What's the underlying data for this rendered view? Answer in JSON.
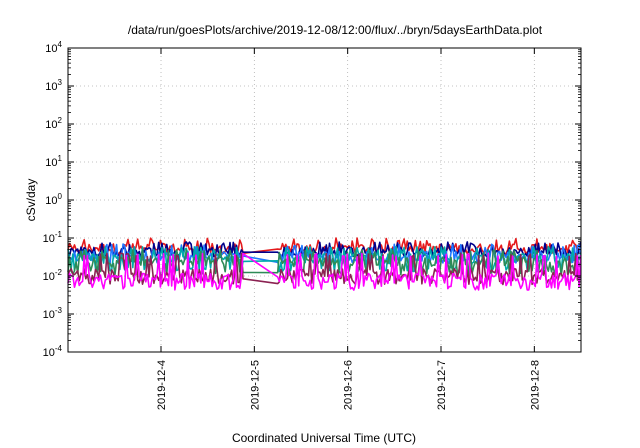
{
  "chart_data": {
    "type": "line",
    "title": "/data/run/goesPlots/archive/2019-12-08/12:00/flux/../bryn/5daysEarthData.plot",
    "xlabel": "Coordinated Universal Time (UTC)",
    "ylabel": "cSv/day",
    "yscale": "log",
    "ylim": [
      0.0001,
      10000
    ],
    "xlim": [
      "2019-12-03 00:05",
      "2019-12-08 12:00"
    ],
    "grid": true,
    "x_ticks": [
      "2019-12-4",
      "2019-12-5",
      "2019-12-6",
      "2019-12-7",
      "2019-12-8"
    ],
    "y_ticks": [
      {
        "base": "10",
        "exp": "-4",
        "value": 0.0001
      },
      {
        "base": "10",
        "exp": "-3",
        "value": 0.001
      },
      {
        "base": "10",
        "exp": "-2",
        "value": 0.01
      },
      {
        "base": "10",
        "exp": "-1",
        "value": 0.1
      },
      {
        "base": "10",
        "exp": "0",
        "value": 1
      },
      {
        "base": "10",
        "exp": "1",
        "value": 10
      },
      {
        "base": "10",
        "exp": "2",
        "value": 100
      },
      {
        "base": "10",
        "exp": "3",
        "value": 1000
      },
      {
        "base": "10",
        "exp": "4",
        "value": 10000
      }
    ],
    "gap": [
      "2019-12-04 21:20",
      "2019-12-05 06:00"
    ],
    "series": [
      {
        "color": "#e41a1c",
        "typical": 0.055,
        "low": 0.045,
        "high": 0.1
      },
      {
        "color": "#00008b",
        "typical": 0.045,
        "low": 0.035,
        "high": 0.08
      },
      {
        "color": "#1f77ff",
        "typical": 0.035,
        "low": 0.025,
        "high": 0.07
      },
      {
        "color": "#00aaaa",
        "typical": 0.03,
        "low": 0.015,
        "high": 0.06
      },
      {
        "color": "#2e8b57",
        "typical": 0.025,
        "low": 0.012,
        "high": 0.05
      },
      {
        "color": "#8b2252",
        "typical": 0.012,
        "low": 0.007,
        "high": 0.04
      },
      {
        "color": "#ff00ff",
        "typical": 0.009,
        "low": 0.005,
        "high": 0.04
      }
    ]
  }
}
